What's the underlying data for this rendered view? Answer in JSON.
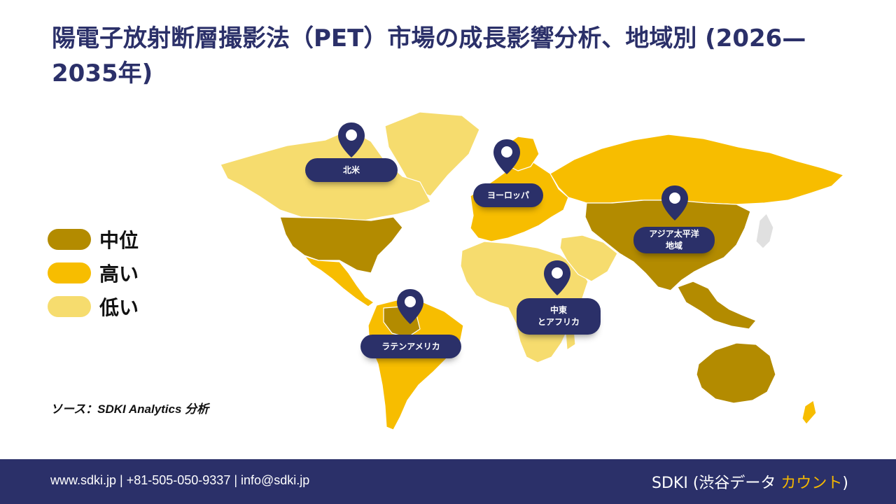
{
  "title": "陽電子放射断層撮影法（PET）市場の成長影響分析、地域別 (2026—2035年)",
  "legend": [
    {
      "label": "中位",
      "color": "#b38b00"
    },
    {
      "label": "高い",
      "color": "#f7bd00"
    },
    {
      "label": "低い",
      "color": "#f6dc6e"
    }
  ],
  "regions": {
    "north_america": "北米",
    "europe": "ヨーロッパ",
    "asia_pacific": "アジア太平洋\n地域",
    "middle_east_africa": "中東\nとアフリカ",
    "latin_america": "ラテンアメリカ"
  },
  "source": "ソース：SDKI Analytics 分析",
  "footer": {
    "contact": "www.sdki.jp | +81-505-050-9337 | info@sdki.jp",
    "brand_prefix": "SDKI (渋谷データ ",
    "brand_accent": "カウント",
    "brand_suffix": ")"
  },
  "colors": {
    "navy": "#2b3069",
    "medium": "#b38b00",
    "high": "#f7bd00",
    "low": "#f6dc6e"
  },
  "icons": [
    "map-pin-icon"
  ]
}
